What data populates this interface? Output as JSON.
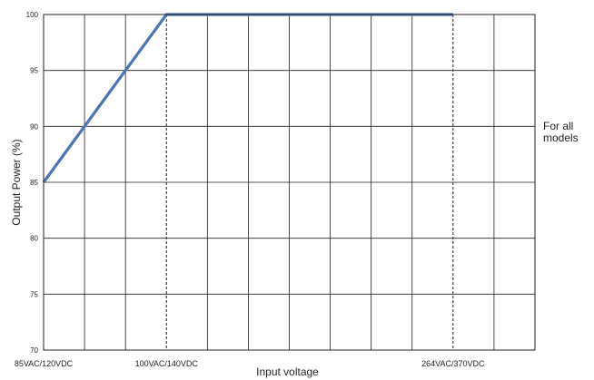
{
  "chart_data": {
    "type": "line",
    "xlabel": "Input voltage",
    "ylabel": "Output Power (%)",
    "ylim": [
      70,
      100
    ],
    "yticks": [
      70,
      75,
      80,
      85,
      90,
      95,
      100
    ],
    "x_grid_divisions": 12,
    "x_ticks": [
      {
        "division": 0,
        "label": "85VAC/120VDC"
      },
      {
        "division": 3,
        "label": "100VAC/140VDC"
      },
      {
        "division": 10,
        "label": "264VAC/370VDC"
      }
    ],
    "dashed_gridlines": [
      3,
      10
    ],
    "series": [
      {
        "color": "#4a74b2",
        "points": [
          {
            "division": 0,
            "y": 85
          },
          {
            "division": 3,
            "y": 100
          },
          {
            "division": 10,
            "y": 100
          }
        ]
      }
    ],
    "grid": true,
    "legend": "none"
  },
  "note": {
    "line1": "For all",
    "line2": "models"
  },
  "colors": {
    "line": "#4a74b2",
    "grid": "#231f20"
  }
}
